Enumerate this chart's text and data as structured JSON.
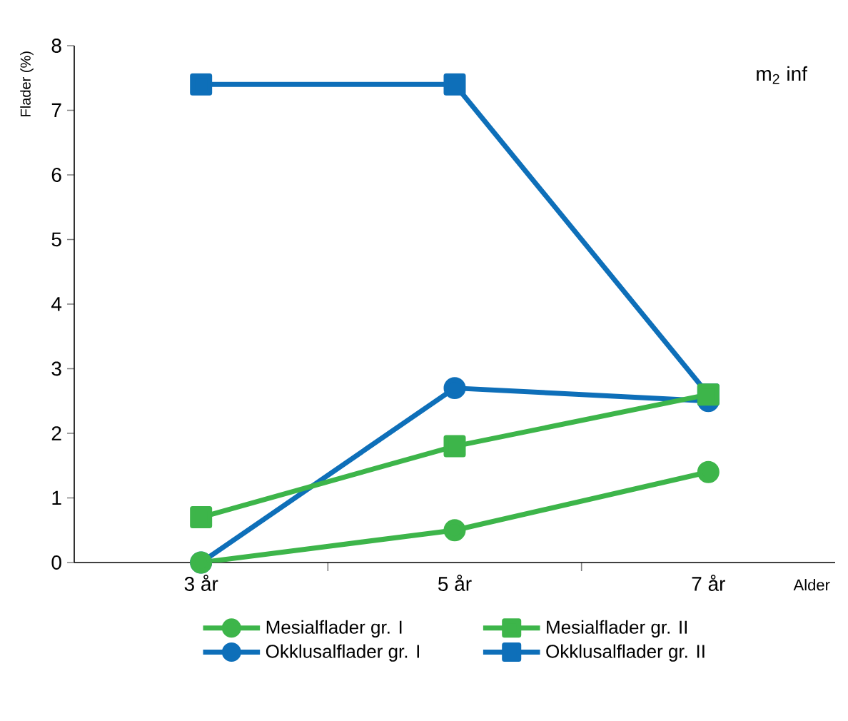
{
  "chart_data": {
    "type": "line",
    "categories": [
      "3 år",
      "5 år",
      "7 år"
    ],
    "series": [
      {
        "name": "Mesialflader gr. I",
        "color": "#3db54a",
        "values": [
          0,
          0.5,
          1.4
        ],
        "marker": "circle"
      },
      {
        "name": "Mesialflader gr. II",
        "color": "#3db54a",
        "values": [
          0.7,
          1.8,
          2.6
        ],
        "marker": "square"
      },
      {
        "name": "Okklusalflader gr. I",
        "color": "#0e6fb9",
        "values": [
          0,
          2.7,
          2.5
        ],
        "marker": "circle"
      },
      {
        "name": "Okklusalflader gr. II",
        "color": "#0e6fb9",
        "values": [
          7.4,
          7.4,
          2.6
        ],
        "marker": "square"
      }
    ],
    "ylim": [
      0,
      8
    ],
    "yticks": [
      0,
      1,
      2,
      3,
      4,
      5,
      6,
      7,
      8
    ],
    "xlabel": "Alder",
    "ylabel": "Flader (%)",
    "annotations": [
      "m$_{2}$ inf"
    ],
    "legend": "bottom",
    "grid": false,
    "line_style": "solid"
  }
}
